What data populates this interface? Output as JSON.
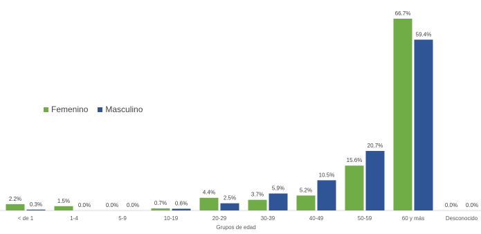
{
  "chart_data": {
    "type": "bar",
    "title": "",
    "xlabel": "Grupos de edad",
    "ylabel": "",
    "ylim": [
      0,
      70
    ],
    "grid": false,
    "legend_position": "left-center",
    "categories": [
      "< de 1",
      "1-4",
      "5-9",
      "10-19",
      "20-29",
      "30-39",
      "40-49",
      "50-59",
      "60 y más",
      "Desconocido"
    ],
    "series": [
      {
        "name": "Femenino",
        "color": "#70ad47",
        "values": [
          2.2,
          1.5,
          0.0,
          0.7,
          4.4,
          3.7,
          5.2,
          15.6,
          66.7,
          0.0
        ],
        "labels": [
          "2.2%",
          "1.5%",
          "0.0%",
          "0.7%",
          "4.4%",
          "3.7%",
          "5.2%",
          "15.6%",
          "66.7%",
          "0.0%"
        ]
      },
      {
        "name": "Masculino",
        "color": "#2f5597",
        "values": [
          0.3,
          0.0,
          0.0,
          0.6,
          2.5,
          5.9,
          10.5,
          20.7,
          59.4,
          0.0
        ],
        "labels": [
          "0.3%",
          "0.0%",
          "0.0%",
          "0.6%",
          "2.5%",
          "5.9%",
          "10.5%",
          "20.7%",
          "59.4%",
          "0.0%"
        ]
      }
    ]
  }
}
